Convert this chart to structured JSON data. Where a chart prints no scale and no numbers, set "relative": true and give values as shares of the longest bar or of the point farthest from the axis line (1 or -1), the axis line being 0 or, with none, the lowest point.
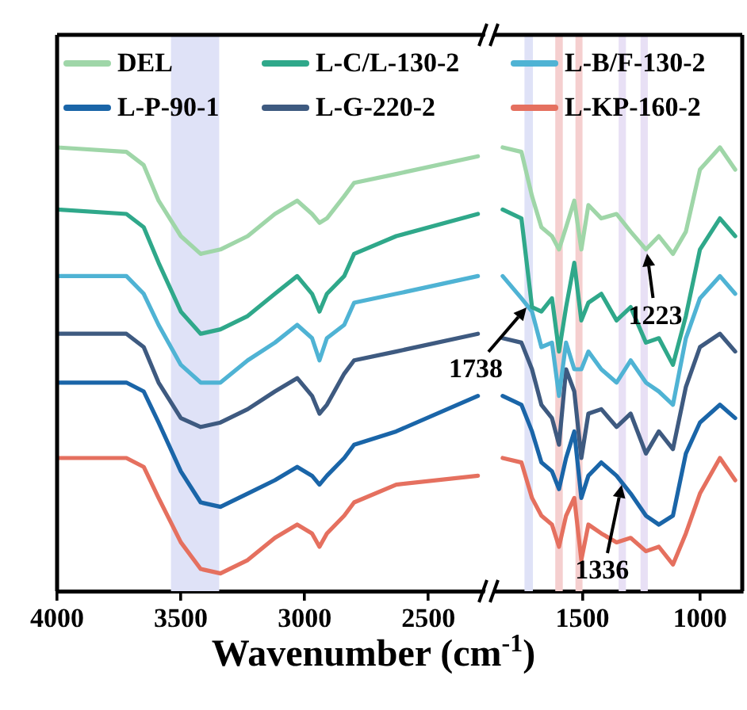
{
  "chart_data": [
    {
      "type": "line",
      "relative": true,
      "xlabel": "Wavenumber (cm$^{-1}$)",
      "legend": "top",
      "xlim": [
        4000,
        2270
      ],
      "xticks": [
        4000,
        3500,
        3000,
        2500
      ],
      "x": [
        4000,
        3720,
        3650,
        3590,
        3500,
        3420,
        3340,
        3230,
        3120,
        3030,
        2970,
        2940,
        2910,
        2840,
        2800,
        2630,
        2300
      ],
      "bands": [
        {
          "axis": "x",
          "from": 3540,
          "to": 3345,
          "color": "#dfe2f7"
        }
      ],
      "series": [
        {
          "name": "DEL",
          "color": "#9fd6a8",
          "values": [
            1.0,
            0.99,
            0.96,
            0.88,
            0.8,
            0.76,
            0.77,
            0.8,
            0.85,
            0.88,
            0.85,
            0.83,
            0.84,
            0.89,
            0.92,
            0.94,
            0.98
          ]
        },
        {
          "name": "L-C/L-130-2",
          "color": "#2fa88a",
          "values": [
            0.86,
            0.85,
            0.82,
            0.74,
            0.63,
            0.58,
            0.59,
            0.62,
            0.67,
            0.71,
            0.67,
            0.63,
            0.67,
            0.71,
            0.76,
            0.8,
            0.85
          ]
        },
        {
          "name": "L-B/F-130-2",
          "color": "#4fb3d4",
          "values": [
            0.71,
            0.71,
            0.67,
            0.6,
            0.51,
            0.47,
            0.47,
            0.52,
            0.56,
            0.6,
            0.57,
            0.52,
            0.57,
            0.6,
            0.65,
            0.67,
            0.71
          ]
        },
        {
          "name": "L-P-90-1",
          "color": "#1a65a8",
          "values": [
            0.47,
            0.47,
            0.45,
            0.38,
            0.27,
            0.2,
            0.19,
            0.22,
            0.25,
            0.28,
            0.26,
            0.24,
            0.26,
            0.3,
            0.33,
            0.36,
            0.44
          ]
        },
        {
          "name": "L-G-220-2",
          "color": "#3e5a80",
          "values": [
            0.58,
            0.58,
            0.55,
            0.47,
            0.39,
            0.37,
            0.38,
            0.41,
            0.45,
            0.48,
            0.44,
            0.4,
            0.42,
            0.49,
            0.52,
            0.54,
            0.58
          ]
        },
        {
          "name": "L-KP-160-2",
          "color": "#e5705f",
          "values": [
            0.3,
            0.3,
            0.28,
            0.21,
            0.11,
            0.05,
            0.04,
            0.07,
            0.12,
            0.15,
            0.13,
            0.1,
            0.13,
            0.17,
            0.2,
            0.24,
            0.26
          ]
        }
      ]
    },
    {
      "type": "line",
      "relative": true,
      "xlim": [
        1880,
        820
      ],
      "xticks": [
        1500,
        1000
      ],
      "x": [
        1840,
        1760,
        1715,
        1675,
        1630,
        1600,
        1570,
        1535,
        1505,
        1475,
        1420,
        1355,
        1295,
        1230,
        1175,
        1115,
        1060,
        1000,
        915,
        850
      ],
      "bands": [
        {
          "axis": "x",
          "from": 1747,
          "to": 1711,
          "color": "#dfe2f7"
        },
        {
          "axis": "x",
          "from": 1616,
          "to": 1584,
          "color": "#f5cfcf"
        },
        {
          "axis": "x",
          "from": 1530,
          "to": 1500,
          "color": "#f5cfcf"
        },
        {
          "axis": "x",
          "from": 1346,
          "to": 1315,
          "color": "#e8e0f5"
        },
        {
          "axis": "x",
          "from": 1253,
          "to": 1222,
          "color": "#e8e0f5"
        }
      ],
      "annotations": [
        {
          "text": "1738",
          "x": 1738,
          "y": 0.64
        },
        {
          "text": "1223",
          "x": 1223,
          "y": 0.76
        },
        {
          "text": "1336",
          "x": 1336,
          "y": 0.24
        }
      ],
      "series": [
        {
          "color": "#9fd6a8",
          "values": [
            1.0,
            0.99,
            0.89,
            0.82,
            0.8,
            0.77,
            0.82,
            0.88,
            0.77,
            0.87,
            0.84,
            0.85,
            0.81,
            0.77,
            0.8,
            0.76,
            0.81,
            0.95,
            1.0,
            0.95
          ]
        },
        {
          "color": "#2fa88a",
          "values": [
            0.86,
            0.84,
            0.64,
            0.63,
            0.66,
            0.54,
            0.64,
            0.74,
            0.61,
            0.65,
            0.67,
            0.61,
            0.64,
            0.56,
            0.57,
            0.51,
            0.62,
            0.77,
            0.84,
            0.8
          ]
        },
        {
          "color": "#4fb3d4",
          "values": [
            0.71,
            0.66,
            0.63,
            0.55,
            0.56,
            0.44,
            0.56,
            0.5,
            0.5,
            0.54,
            0.5,
            0.47,
            0.52,
            0.47,
            0.45,
            0.42,
            0.57,
            0.66,
            0.71,
            0.67
          ]
        },
        {
          "color": "#1a65a8",
          "values": [
            0.44,
            0.42,
            0.36,
            0.29,
            0.27,
            0.23,
            0.3,
            0.36,
            0.21,
            0.26,
            0.29,
            0.26,
            0.22,
            0.17,
            0.15,
            0.17,
            0.31,
            0.38,
            0.42,
            0.39
          ]
        },
        {
          "color": "#3e5a80",
          "values": [
            0.57,
            0.56,
            0.5,
            0.42,
            0.39,
            0.33,
            0.5,
            0.45,
            0.3,
            0.4,
            0.41,
            0.37,
            0.4,
            0.31,
            0.36,
            0.32,
            0.46,
            0.55,
            0.58,
            0.54
          ]
        },
        {
          "color": "#e5705f",
          "values": [
            0.3,
            0.29,
            0.21,
            0.17,
            0.15,
            0.1,
            0.17,
            0.21,
            0.07,
            0.15,
            0.13,
            0.11,
            0.12,
            0.09,
            0.1,
            0.06,
            0.13,
            0.22,
            0.3,
            0.25
          ]
        }
      ]
    }
  ]
}
